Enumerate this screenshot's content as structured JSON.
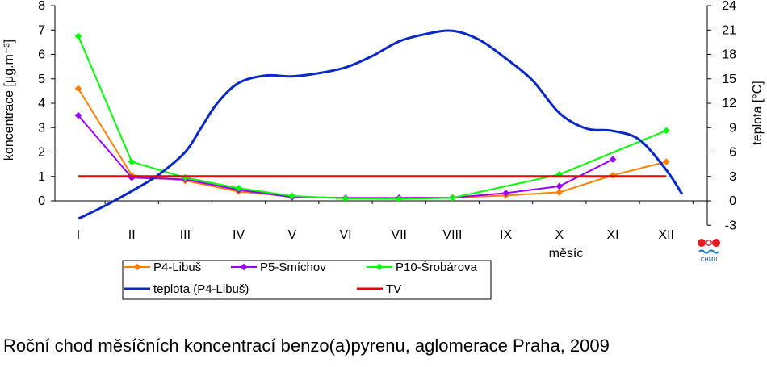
{
  "chart_data": {
    "type": "line",
    "caption": "Roční chod měsíčních koncentrací benzo(a)pyrenu, aglomerace Praha, 2009",
    "ylabel": "koncentrace [μg.m⁻³]",
    "y2label": "teplota [°C]",
    "xlabel": "měsíc",
    "categories": [
      "I",
      "II",
      "III",
      "IV",
      "V",
      "VI",
      "VII",
      "VIII",
      "IX",
      "X",
      "XI",
      "XII"
    ],
    "ylim": [
      0,
      8
    ],
    "yticks": [
      "0",
      "1",
      "2",
      "3",
      "4",
      "5",
      "6",
      "7",
      "8"
    ],
    "y2lim": [
      -3,
      24
    ],
    "y2ticks": [
      "-3",
      "0",
      "3",
      "6",
      "9",
      "12",
      "15",
      "18",
      "21",
      "24"
    ],
    "grid": false,
    "legend_position": "bottom",
    "logo_text": "ČHMÚ",
    "series": [
      {
        "name": "P4-Libuš",
        "axis": "left",
        "color": "#ff8000",
        "marker": "diamond",
        "points": [
          [
            1,
            4.6
          ],
          [
            2,
            1.05
          ],
          [
            3,
            0.83
          ],
          [
            4,
            0.38
          ],
          [
            5,
            0.18
          ],
          [
            6,
            0.12
          ],
          [
            7,
            0.12
          ],
          [
            8,
            0.13
          ],
          [
            9,
            0.22
          ],
          [
            10,
            0.35
          ],
          [
            11,
            1.05
          ],
          [
            12,
            1.6
          ]
        ]
      },
      {
        "name": "P5-Smíchov",
        "axis": "left",
        "color": "#9900ff",
        "marker": "diamond",
        "points": [
          [
            1,
            3.5
          ],
          [
            2,
            0.95
          ],
          [
            3,
            0.88
          ],
          [
            4,
            0.45
          ],
          [
            5,
            0.15
          ],
          [
            6,
            0.12
          ],
          [
            7,
            0.12
          ],
          [
            8,
            0.13
          ],
          [
            9,
            0.32
          ],
          [
            10,
            0.6
          ],
          [
            11,
            1.7
          ]
        ]
      },
      {
        "name": "P10-Šrobárova",
        "axis": "left",
        "color": "#00ff00",
        "marker": "diamond",
        "points": [
          [
            1,
            6.75
          ],
          [
            2,
            1.6
          ],
          [
            3,
            0.95
          ],
          [
            4,
            0.52
          ],
          [
            5,
            0.2
          ],
          [
            6,
            0.1
          ],
          [
            7,
            0.08
          ],
          [
            8,
            0.12
          ],
          [
            10,
            1.08
          ],
          [
            12,
            2.88
          ]
        ]
      },
      {
        "name": "teplota (P4-Libuš)",
        "axis": "right",
        "color": "#0a28c8",
        "marker": "none",
        "points": [
          [
            1,
            -2.2
          ],
          [
            1.5,
            -0.6
          ],
          [
            2,
            1.2
          ],
          [
            2.5,
            3.2
          ],
          [
            3,
            6.0
          ],
          [
            3.3,
            9.0
          ],
          [
            3.6,
            12.0
          ],
          [
            4.0,
            14.5
          ],
          [
            4.5,
            15.4
          ],
          [
            5,
            15.3
          ],
          [
            5.5,
            15.7
          ],
          [
            6,
            16.4
          ],
          [
            6.5,
            17.8
          ],
          [
            7,
            19.6
          ],
          [
            7.5,
            20.5
          ],
          [
            8,
            20.9
          ],
          [
            8.5,
            19.8
          ],
          [
            9,
            17.5
          ],
          [
            9.5,
            14.8
          ],
          [
            10,
            10.8
          ],
          [
            10.5,
            8.9
          ],
          [
            11,
            8.6
          ],
          [
            11.5,
            7.5
          ],
          [
            12,
            3.8
          ],
          [
            12.3,
            0.8
          ]
        ]
      },
      {
        "name": "TV",
        "axis": "left",
        "color": "#ee0000",
        "marker": "none",
        "points": [
          [
            1,
            1
          ],
          [
            12,
            1
          ]
        ]
      }
    ]
  }
}
